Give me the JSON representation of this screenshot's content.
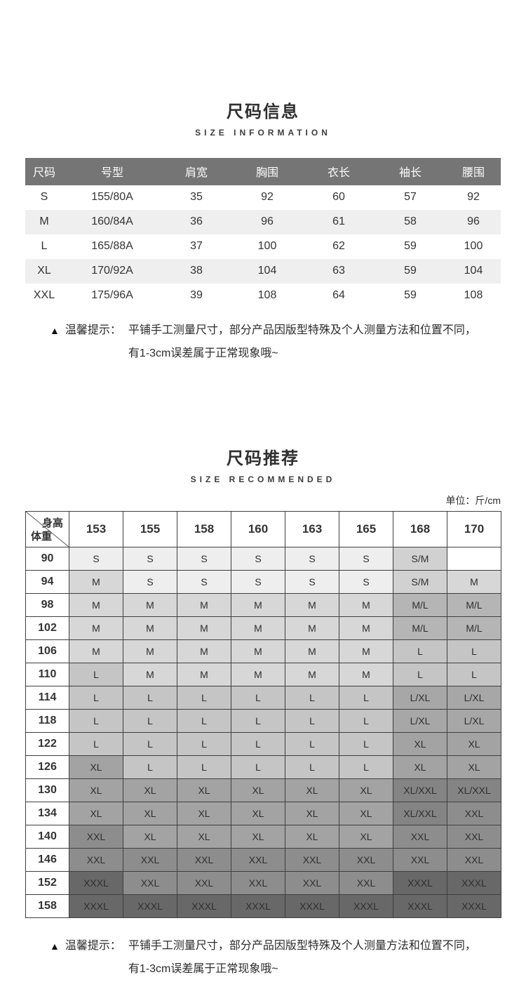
{
  "section1": {
    "title": "尺码信息",
    "subtitle": "SIZE INFORMATION",
    "table": {
      "header_bg": "#757575",
      "stripe_bg": "#efefef",
      "headers": [
        "尺码",
        "号型",
        "肩宽",
        "胸围",
        "衣长",
        "袖长",
        "腰围"
      ],
      "rows": [
        [
          "S",
          "155/80A",
          "35",
          "92",
          "60",
          "57",
          "92"
        ],
        [
          "M",
          "160/84A",
          "36",
          "96",
          "61",
          "58",
          "96"
        ],
        [
          "L",
          "165/88A",
          "37",
          "100",
          "62",
          "59",
          "100"
        ],
        [
          "XL",
          "170/92A",
          "38",
          "104",
          "63",
          "59",
          "104"
        ],
        [
          "XXL",
          "175/96A",
          "39",
          "108",
          "64",
          "59",
          "108"
        ]
      ]
    },
    "tip": {
      "icon": "▲",
      "label": "温馨提示：",
      "line1": "平铺手工测量尺寸，部分产品因版型特殊及个人测量方法和位置不同，",
      "line2": "有1-3cm误差属于正常现象哦~"
    }
  },
  "section2": {
    "title": "尺码推荐",
    "subtitle": "SIZE RECOMMENDED",
    "unit": "单位：斤/cm",
    "matrix": {
      "corner_top": "身高",
      "corner_bottom": "体重",
      "heights": [
        "153",
        "155",
        "158",
        "160",
        "163",
        "165",
        "168",
        "170"
      ],
      "weights": [
        "90",
        "94",
        "98",
        "102",
        "106",
        "110",
        "114",
        "118",
        "122",
        "126",
        "130",
        "134",
        "140",
        "146",
        "152",
        "158"
      ],
      "cells": [
        [
          "S",
          "S",
          "S",
          "S",
          "S",
          "S",
          "S/M",
          ""
        ],
        [
          "M",
          "S",
          "S",
          "S",
          "S",
          "S",
          "S/M",
          "M"
        ],
        [
          "M",
          "M",
          "M",
          "M",
          "M",
          "M",
          "M/L",
          "M/L"
        ],
        [
          "M",
          "M",
          "M",
          "M",
          "M",
          "M",
          "M/L",
          "M/L"
        ],
        [
          "M",
          "M",
          "M",
          "M",
          "M",
          "M",
          "L",
          "L"
        ],
        [
          "L",
          "M",
          "M",
          "M",
          "M",
          "M",
          "L",
          "L"
        ],
        [
          "L",
          "L",
          "L",
          "L",
          "L",
          "L",
          "L/XL",
          "L/XL"
        ],
        [
          "L",
          "L",
          "L",
          "L",
          "L",
          "L",
          "L/XL",
          "L/XL"
        ],
        [
          "L",
          "L",
          "L",
          "L",
          "L",
          "L",
          "XL",
          "XL"
        ],
        [
          "XL",
          "L",
          "L",
          "L",
          "L",
          "L",
          "XL",
          "XL"
        ],
        [
          "XL",
          "XL",
          "XL",
          "XL",
          "XL",
          "XL",
          "XL/XXL",
          "XL/XXL"
        ],
        [
          "XL",
          "XL",
          "XL",
          "XL",
          "XL",
          "XL",
          "XL/XXL",
          "XXL"
        ],
        [
          "XXL",
          "XL",
          "XL",
          "XL",
          "XL",
          "XL",
          "XXL",
          "XXL"
        ],
        [
          "XXL",
          "XXL",
          "XXL",
          "XXL",
          "XXL",
          "XXL",
          "XXL",
          "XXL"
        ],
        [
          "XXXL",
          "XXL",
          "XXL",
          "XXL",
          "XXL",
          "XXL",
          "XXXL",
          "XXXL"
        ],
        [
          "XXXL",
          "XXXL",
          "XXXL",
          "XXXL",
          "XXXL",
          "XXXL",
          "XXXL",
          "XXXL"
        ]
      ],
      "size_colors": {
        "": "#ffffff",
        "S": "#eeeeee",
        "S/M": "#d1d1d1",
        "M": "#d7d7d7",
        "M/L": "#b5b5b5",
        "L": "#c5c5c5",
        "L/XL": "#a7a7a7",
        "XL": "#a3a3a3",
        "XL/XXL": "#848484",
        "XXL": "#8d8d8d",
        "XXXL": "#686868"
      }
    },
    "tip": {
      "icon": "▲",
      "label": "温馨提示：",
      "line1": "平铺手工测量尺寸，部分产品因版型特殊及个人测量方法和位置不同，",
      "line2": "有1-3cm误差属于正常现象哦~"
    }
  }
}
